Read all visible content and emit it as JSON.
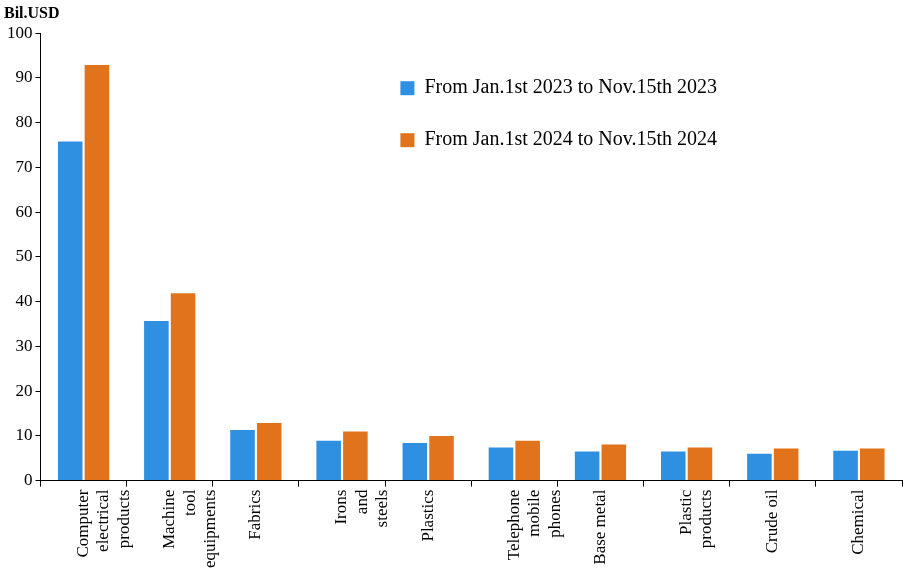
{
  "chart_data": {
    "type": "bar",
    "y_label": "Bil.USD",
    "categories": [
      "Computer electrical products",
      "Machine tool equipments",
      "Fabrics",
      "Irons and steels",
      "Plastics",
      "Telephone mobile phones",
      "Base metal",
      "Plastic products",
      "Crude oil",
      "Chemical"
    ],
    "series": [
      {
        "name": "From Jan.1st 2023 to Nov.15th 2023",
        "color": "#2f8fe0",
        "values": [
          75.8,
          35.7,
          11.3,
          8.9,
          8.4,
          7.4,
          6.5,
          6.5,
          6.0,
          6.7
        ]
      },
      {
        "name": "From Jan.1st 2024 to Nov.15th 2024",
        "color": "#e0731c",
        "values": [
          92.9,
          41.9,
          12.9,
          11.0,
          10.0,
          8.9,
          8.1,
          7.4,
          7.2,
          7.2
        ]
      }
    ],
    "ylim": [
      0,
      100
    ],
    "yticks": [
      0,
      10,
      20,
      30,
      40,
      50,
      60,
      70,
      80,
      90,
      100
    ],
    "grid": false,
    "legend": "top right"
  }
}
